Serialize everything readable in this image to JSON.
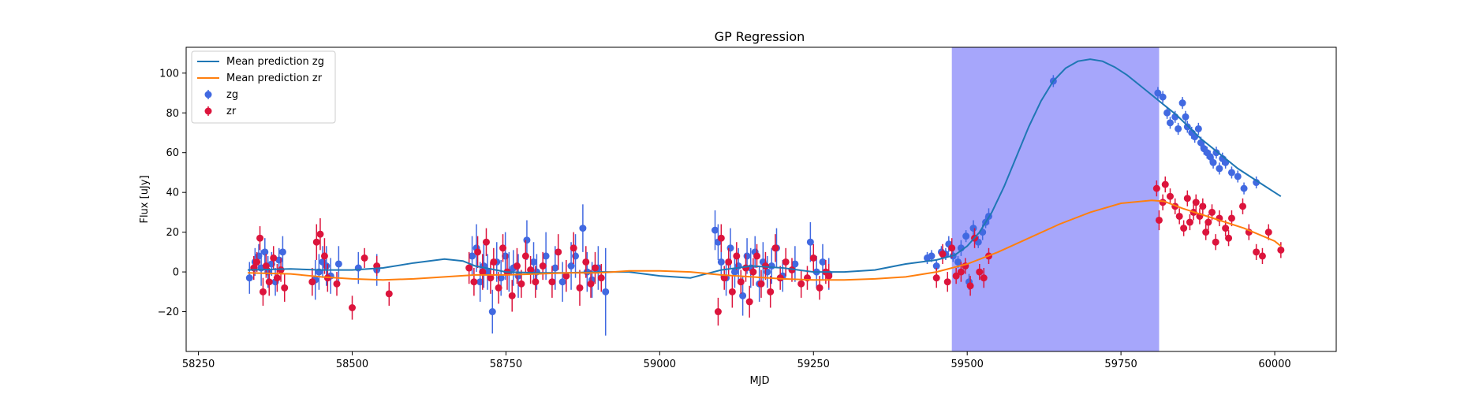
{
  "chart_data": {
    "type": "scatter",
    "title": "GP Regression",
    "xlabel": "MJD",
    "ylabel": "Flux [uJy]",
    "xlim": [
      58230,
      60100
    ],
    "ylim": [
      -40,
      113
    ],
    "xticks": [
      58250,
      58500,
      58750,
      59000,
      59250,
      59500,
      59750,
      60000
    ],
    "yticks": [
      -20,
      0,
      20,
      40,
      60,
      80,
      100
    ],
    "legend_position": "upper-left",
    "shaded_region": {
      "x_start": 59475,
      "x_end": 59812,
      "color": "#a6a6fb"
    },
    "colors": {
      "zg_line": "#1f77b4",
      "zr_line": "#ff7f0e",
      "zg_points": "#4169e1",
      "zr_points": "#dc143c"
    },
    "legend": {
      "line_zg": "Mean prediction zg",
      "line_zr": "Mean prediction zr",
      "points_zg": "zg",
      "points_zr": "zr"
    },
    "series": [
      {
        "name": "Mean prediction zg",
        "kind": "line",
        "x": [
          58330,
          58400,
          58450,
          58500,
          58550,
          58600,
          58650,
          58680,
          58700,
          58750,
          58800,
          58850,
          58900,
          58950,
          59000,
          59050,
          59100,
          59150,
          59200,
          59250,
          59300,
          59350,
          59400,
          59450,
          59480,
          59500,
          59520,
          59540,
          59560,
          59580,
          59600,
          59620,
          59640,
          59660,
          59680,
          59700,
          59720,
          59740,
          59760,
          59780,
          59800,
          59820,
          59840,
          59860,
          59880,
          59900,
          59920,
          59940,
          59960,
          59980,
          60000,
          60010
        ],
        "y": [
          1,
          1.5,
          1,
          1,
          2,
          4.5,
          6.5,
          5.5,
          3,
          0,
          -0.5,
          -0.5,
          0,
          0,
          -2,
          -3,
          1,
          3,
          2,
          0,
          0,
          1,
          4,
          6,
          8.5,
          13,
          20,
          30,
          43,
          58,
          73,
          86,
          96,
          102.5,
          106,
          107,
          106,
          103,
          99,
          94,
          89,
          84,
          79,
          73,
          67,
          62,
          57,
          52,
          48,
          44,
          40,
          38
        ]
      },
      {
        "name": "Mean prediction zr",
        "kind": "line",
        "x": [
          58330,
          58400,
          58450,
          58500,
          58550,
          58600,
          58650,
          58700,
          58750,
          58800,
          58850,
          58900,
          58950,
          59000,
          59050,
          59100,
          59150,
          59200,
          59250,
          59300,
          59350,
          59400,
          59450,
          59500,
          59550,
          59600,
          59650,
          59700,
          59750,
          59800,
          59820,
          59850,
          59900,
          59950,
          60000,
          60010
        ],
        "y": [
          -0.5,
          -1,
          -2.5,
          -3.5,
          -4,
          -3.5,
          -2.5,
          -1.5,
          -1.5,
          -1,
          -0.5,
          -0.5,
          0.5,
          0.5,
          0,
          -1.5,
          -2.5,
          -3.5,
          -4,
          -4,
          -3.5,
          -2.5,
          0,
          4,
          10,
          17,
          24,
          30,
          34.5,
          36,
          35.5,
          32,
          27,
          22,
          15.5,
          13
        ]
      },
      {
        "name": "zg",
        "kind": "errorbar",
        "x": [
          58333,
          58342,
          58348,
          58352,
          58358,
          58363,
          58369,
          58375,
          58381,
          58387,
          58440,
          58446,
          58452,
          58458,
          58465,
          58478,
          58510,
          58540,
          58695,
          58702,
          58708,
          58714,
          58720,
          58728,
          58735,
          58742,
          58749,
          58755,
          58762,
          58770,
          58784,
          58795,
          58800,
          58815,
          58830,
          58842,
          58856,
          58863,
          58875,
          58882,
          58890,
          58900,
          58912,
          59090,
          59095,
          59100,
          59108,
          59115,
          59122,
          59128,
          59135,
          59142,
          59148,
          59155,
          59162,
          59168,
          59175,
          59182,
          59190,
          59200,
          59220,
          59245,
          59255,
          59265,
          59275,
          59435,
          59442,
          59450,
          59458,
          59465,
          59470,
          59477,
          59485,
          59490,
          59498,
          59503,
          59510,
          59518,
          59525,
          59530,
          59535,
          59640,
          59810,
          59818,
          59825,
          59830,
          59838,
          59843,
          59850,
          59855,
          59858,
          59865,
          59870,
          59876,
          59880,
          59885,
          59890,
          59895,
          59900,
          59905,
          59910,
          59915,
          59920,
          59930,
          59940,
          59950,
          59970
        ],
        "y": [
          -3,
          5,
          8,
          2,
          10,
          0,
          4,
          -5,
          6,
          10,
          -4,
          0,
          5,
          3,
          -2,
          4,
          2,
          1,
          8,
          12,
          -5,
          3,
          0,
          -20,
          5,
          -3,
          8,
          0,
          2,
          -2,
          16,
          5,
          0,
          8,
          2,
          -5,
          3,
          8,
          22,
          0,
          -4,
          2,
          -10,
          21,
          15,
          5,
          -3,
          12,
          0,
          3,
          -12,
          8,
          2,
          10,
          -6,
          5,
          0,
          3,
          12,
          -2,
          4,
          15,
          0,
          5,
          -1,
          7,
          8,
          3,
          10,
          9,
          14,
          8,
          5,
          12,
          18,
          -5,
          22,
          15,
          20,
          25,
          28,
          96,
          90,
          88,
          80,
          75,
          78,
          72,
          85,
          78,
          73,
          70,
          68,
          72,
          65,
          62,
          60,
          58,
          55,
          60,
          52,
          57,
          55,
          50,
          48,
          42,
          45
        ],
        "err": [
          8,
          7,
          6,
          9,
          7,
          8,
          6,
          7,
          6,
          8,
          10,
          9,
          8,
          10,
          9,
          9,
          8,
          8,
          10,
          12,
          10,
          11,
          9,
          11,
          10,
          9,
          12,
          10,
          9,
          11,
          10,
          10,
          9,
          12,
          11,
          10,
          12,
          11,
          12,
          10,
          9,
          11,
          22,
          10,
          9,
          8,
          9,
          10,
          8,
          9,
          10,
          9,
          10,
          8,
          9,
          10,
          8,
          9,
          10,
          8,
          9,
          10,
          8,
          9,
          8,
          3,
          3,
          3,
          3,
          3,
          4,
          3,
          3,
          4,
          3,
          4,
          4,
          3,
          4,
          3,
          4,
          3,
          3,
          3,
          3,
          3,
          3,
          3,
          3,
          3,
          3,
          3,
          3,
          3,
          3,
          3,
          3,
          3,
          3,
          3,
          3,
          3,
          3,
          3,
          3,
          3,
          3
        ]
      },
      {
        "name": "zr",
        "kind": "errorbar",
        "x": [
          58340,
          58345,
          58350,
          58355,
          58360,
          58365,
          58372,
          58378,
          58384,
          58390,
          58435,
          58442,
          58448,
          58455,
          58460,
          58475,
          58500,
          58520,
          58540,
          58560,
          58690,
          58698,
          58704,
          58712,
          58718,
          58725,
          58730,
          58738,
          58745,
          58752,
          58760,
          58768,
          58775,
          58782,
          58790,
          58798,
          58810,
          58825,
          58835,
          58848,
          58860,
          58870,
          58880,
          58888,
          58895,
          58905,
          59095,
          59100,
          59105,
          59112,
          59118,
          59125,
          59132,
          59140,
          59146,
          59152,
          59158,
          59165,
          59172,
          59180,
          59188,
          59196,
          59205,
          59215,
          59230,
          59240,
          59250,
          59260,
          59270,
          59275,
          59450,
          59460,
          59468,
          59475,
          59482,
          59490,
          59497,
          59505,
          59512,
          59520,
          59527,
          59535,
          59808,
          59812,
          59818,
          59822,
          59830,
          59838,
          59845,
          59852,
          59858,
          59862,
          59868,
          59872,
          59878,
          59883,
          59888,
          59892,
          59898,
          59904,
          59910,
          59920,
          59925,
          59930,
          59948,
          59958,
          59970,
          59980,
          59990,
          60010
        ],
        "y": [
          2,
          5,
          17,
          -10,
          3,
          -5,
          7,
          -3,
          1,
          -8,
          -5,
          15,
          19,
          8,
          -3,
          -6,
          -18,
          7,
          3,
          -11,
          2,
          -5,
          10,
          0,
          15,
          -3,
          5,
          -8,
          12,
          0,
          -12,
          3,
          -6,
          8,
          1,
          -5,
          3,
          -5,
          10,
          -2,
          12,
          -8,
          5,
          -6,
          2,
          -3,
          -20,
          17,
          -3,
          5,
          -10,
          8,
          -5,
          2,
          -15,
          0,
          8,
          -6,
          3,
          -10,
          12,
          -3,
          5,
          1,
          -6,
          -3,
          7,
          -8,
          0,
          -2,
          -3,
          9,
          -5,
          12,
          -2,
          0,
          3,
          -7,
          17,
          0,
          -3,
          8,
          42,
          26,
          35,
          44,
          38,
          33,
          28,
          22,
          37,
          25,
          30,
          35,
          28,
          33,
          20,
          25,
          30,
          15,
          27,
          22,
          17,
          27,
          33,
          20,
          10,
          8,
          20,
          11
        ],
        "err": [
          6,
          5,
          6,
          7,
          6,
          7,
          6,
          7,
          6,
          7,
          7,
          9,
          8,
          9,
          7,
          6,
          6,
          5,
          5,
          6,
          8,
          7,
          8,
          9,
          7,
          8,
          7,
          8,
          7,
          9,
          8,
          9,
          7,
          8,
          7,
          8,
          7,
          8,
          9,
          8,
          8,
          9,
          8,
          7,
          8,
          7,
          7,
          7,
          6,
          7,
          8,
          7,
          6,
          7,
          8,
          7,
          6,
          7,
          7,
          8,
          7,
          6,
          7,
          6,
          7,
          6,
          7,
          6,
          6,
          6,
          5,
          5,
          5,
          5,
          4,
          5,
          4,
          5,
          5,
          4,
          5,
          4,
          4,
          5,
          4,
          4,
          4,
          4,
          4,
          4,
          4,
          4,
          4,
          4,
          4,
          4,
          4,
          4,
          4,
          4,
          4,
          4,
          4,
          4,
          4,
          4,
          4,
          4,
          4,
          4
        ]
      }
    ]
  }
}
